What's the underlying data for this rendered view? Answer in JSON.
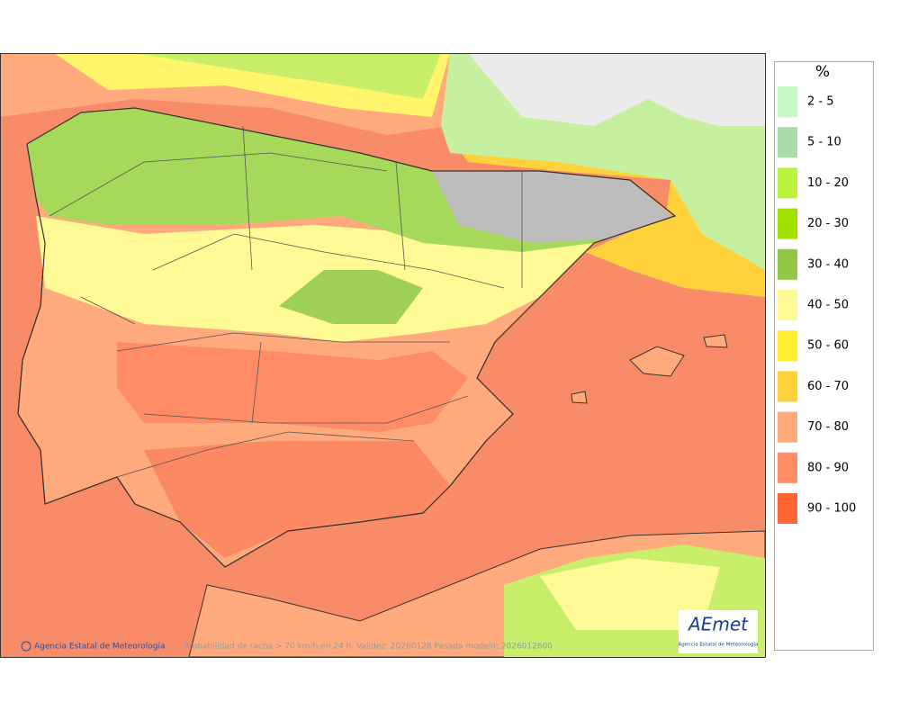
{
  "legend": {
    "title": "%",
    "items": [
      {
        "label": "2 - 5",
        "color": "#c6f9c6"
      },
      {
        "label": "5 - 10",
        "color": "#a9dca9"
      },
      {
        "label": "10 - 20",
        "color": "#bdf23c"
      },
      {
        "label": "20 - 30",
        "color": "#a3e000"
      },
      {
        "label": "30 - 40",
        "color": "#92c846"
      },
      {
        "label": "40 - 50",
        "color": "#fffa96"
      },
      {
        "label": "50 - 60",
        "color": "#fff032"
      },
      {
        "label": "60 - 70",
        "color": "#ffd23c"
      },
      {
        "label": "70 - 80",
        "color": "#ffaa7d"
      },
      {
        "label": "80 - 90",
        "color": "#ff8c64"
      },
      {
        "label": "90 - 100",
        "color": "#ff6432"
      }
    ]
  },
  "map": {
    "credit": "Agencia Estatal de Meteorología",
    "caption": "Probabilidad de racha > 70 km/h en 24 h. Validez: 20260128 Pasada modelo: 2026012600",
    "logo": {
      "name": "AEmet",
      "subtitle": "Agencia Estatal de Meteorología"
    }
  }
}
